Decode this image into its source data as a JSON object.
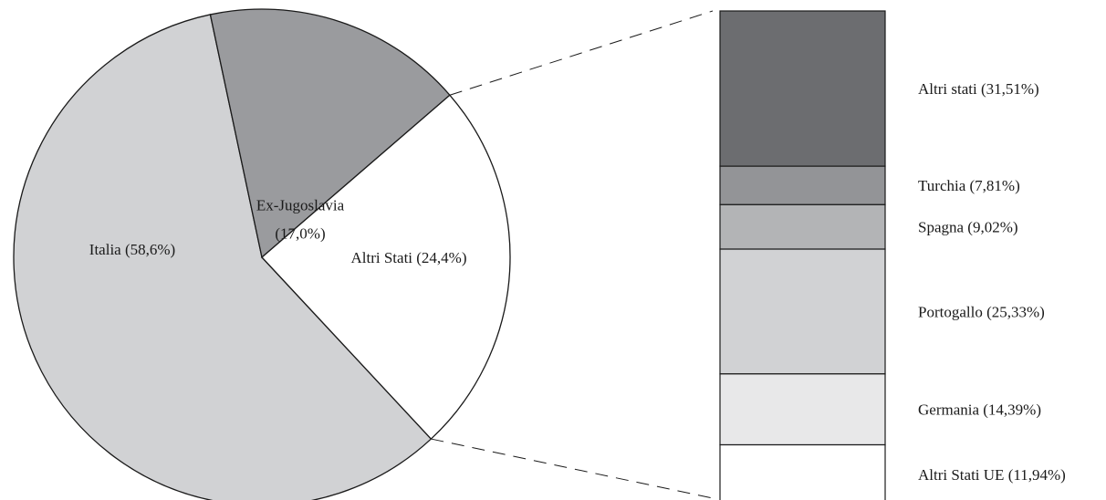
{
  "chart_data": [
    {
      "type": "pie",
      "title": "",
      "slices": [
        {
          "label": "Italia (58,6%)",
          "lines": [
            "Italia (58,6%)"
          ],
          "value": 58.6,
          "color": "#d1d2d4"
        },
        {
          "label": "Ex-Jugoslavia (17,0%)",
          "lines": [
            "Ex-Jugoslavia",
            "(17,0%)"
          ],
          "value": 17.0,
          "color": "#9a9b9e"
        },
        {
          "label": "Altri Stati (24,4%)",
          "lines": [
            "Altri Stati (24,4%)"
          ],
          "value": 24.4,
          "color": "#ffffff"
        }
      ]
    },
    {
      "type": "bar",
      "stacked": true,
      "title": "",
      "breakdown_of": "Altri Stati (24,4%)",
      "segments": [
        {
          "label": "Altri stati (31,51%)",
          "value": 31.51,
          "color": "#6c6d70"
        },
        {
          "label": "Turchia (7,81%)",
          "value": 7.81,
          "color": "#939497"
        },
        {
          "label": "Spagna (9,02%)",
          "value": 9.02,
          "color": "#b3b4b6"
        },
        {
          "label": "Portogallo (25,33%)",
          "value": 25.33,
          "color": "#d1d2d4"
        },
        {
          "label": "Germania (14,39%)",
          "value": 14.39,
          "color": "#e8e8e9"
        },
        {
          "label": "Altri Stati UE (11,94%)",
          "value": 11.94,
          "color": "#ffffff"
        }
      ]
    }
  ]
}
